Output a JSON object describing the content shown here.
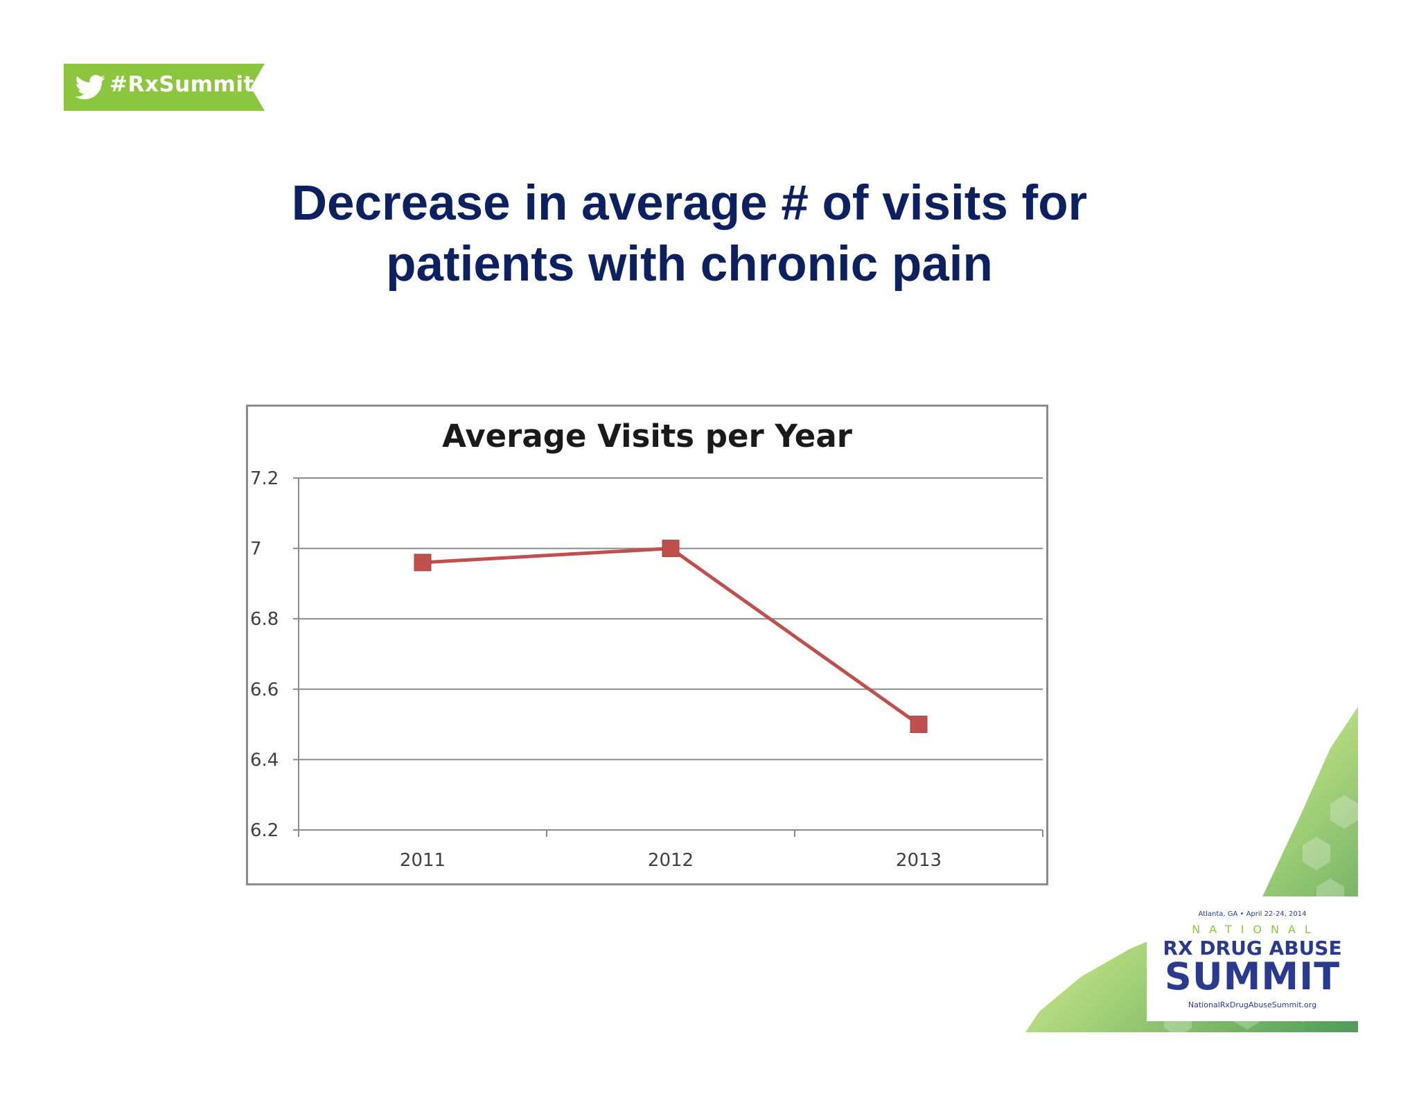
{
  "hashtag": {
    "text": "#RxSummit",
    "icon": "twitter-bird-icon",
    "color": "#8cc63f"
  },
  "slide": {
    "title_line1": "Decrease in average # of visits for",
    "title_line2": "patients with chronic pain",
    "title_color": "#0d2060"
  },
  "chart_data": {
    "type": "line",
    "title": "Average Visits per Year",
    "categories": [
      "2011",
      "2012",
      "2013"
    ],
    "series": [
      {
        "values": [
          6.96,
          7.0,
          6.5
        ],
        "color": "#c0504d",
        "marker": "square"
      }
    ],
    "xlabel": "",
    "ylabel": "",
    "ylim": [
      6.2,
      7.2
    ],
    "yticks": [
      7.2,
      7,
      6.8,
      6.6,
      6.4,
      6.2
    ],
    "ytick_labels": [
      "7.2",
      "7",
      "6.8",
      "6.6",
      "6.4",
      "6.2"
    ],
    "grid": true,
    "legend": "none"
  },
  "logo": {
    "line1": "Atlanta, GA • April 22-24, 2014",
    "line2": "NATIONAL",
    "line3": "RX DRUG ABUSE",
    "line4": "SUMMIT",
    "line5": "NationalRxDrugAbuseSummit.org",
    "accent_green": "#8cc63f",
    "accent_blue": "#2a3a8f"
  }
}
